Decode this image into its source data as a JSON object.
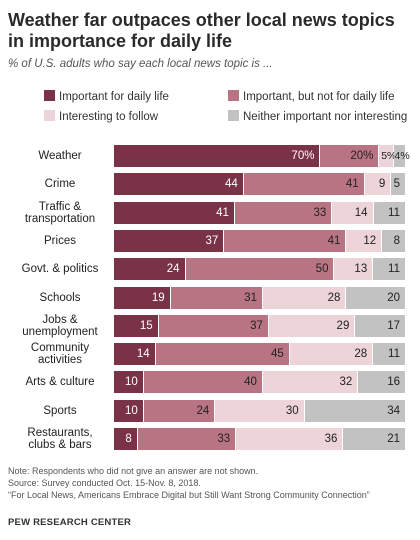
{
  "title": "Weather far outpaces other local news topics in importance for daily life",
  "subtitle": "% of U.S. adults who say each local news topic is ...",
  "notes": {
    "note": "Note: Respondents who did not give an answer are not shown.",
    "source": "Source: Survey conducted Oct. 15-Nov. 8, 2018.",
    "report": "“For Local News, Americans Embrace Digital but Still Want Strong Community Connection”",
    "org": "PEW RESEARCH CENTER"
  },
  "chart_data": {
    "type": "bar",
    "orientation": "horizontal",
    "stacked": true,
    "title": "Weather far outpaces other local news topics in importance for daily life",
    "subtitle": "% of U.S. adults who say each local news topic is ...",
    "legend_placement": "top",
    "categories": [
      "Weather",
      "Crime",
      "Traffic & transportation",
      "Prices",
      "Govt. & politics",
      "Schools",
      "Jobs & unemployment",
      "Community activities",
      "Arts & culture",
      "Sports",
      "Restaurants, clubs & bars"
    ],
    "series": [
      {
        "name": "Important for daily life",
        "color": "#7a3346",
        "values": [
          70,
          44,
          41,
          37,
          24,
          19,
          15,
          14,
          10,
          10,
          8
        ]
      },
      {
        "name": "Important, but not for daily life",
        "color": "#b87482",
        "values": [
          20,
          41,
          33,
          41,
          50,
          31,
          37,
          45,
          40,
          24,
          33
        ]
      },
      {
        "name": "Interesting to follow",
        "color": "#ecd4d9",
        "values": [
          5,
          9,
          14,
          12,
          13,
          28,
          29,
          28,
          32,
          30,
          36
        ]
      },
      {
        "name": "Neither important nor interesting",
        "color": "#c2c2c2",
        "values": [
          4,
          5,
          11,
          8,
          11,
          20,
          17,
          11,
          16,
          34,
          21
        ]
      }
    ],
    "value_labels": [
      [
        "70%",
        "44",
        "41",
        "37",
        "24",
        "19",
        "15",
        "14",
        "10",
        "10",
        "8"
      ],
      [
        "20%",
        "41",
        "33",
        "41",
        "50",
        "31",
        "37",
        "45",
        "40",
        "24",
        "33"
      ],
      [
        "5%",
        "9",
        "14",
        "12",
        "13",
        "28",
        "29",
        "28",
        "32",
        "30",
        "36"
      ],
      [
        "4%",
        "5",
        "11",
        "8",
        "11",
        "20",
        "17",
        "11",
        "16",
        "34",
        "21"
      ]
    ],
    "category_labels": [
      [
        "Weather"
      ],
      [
        "Crime"
      ],
      [
        "Traffic &",
        "transportation"
      ],
      [
        "Prices"
      ],
      [
        "Govt. & politics"
      ],
      [
        "Schools"
      ],
      [
        "Jobs &",
        "unemployment"
      ],
      [
        "Community",
        "activities"
      ],
      [
        "Arts & culture"
      ],
      [
        "Sports"
      ],
      [
        "Restaurants,",
        "clubs & bars"
      ]
    ]
  }
}
